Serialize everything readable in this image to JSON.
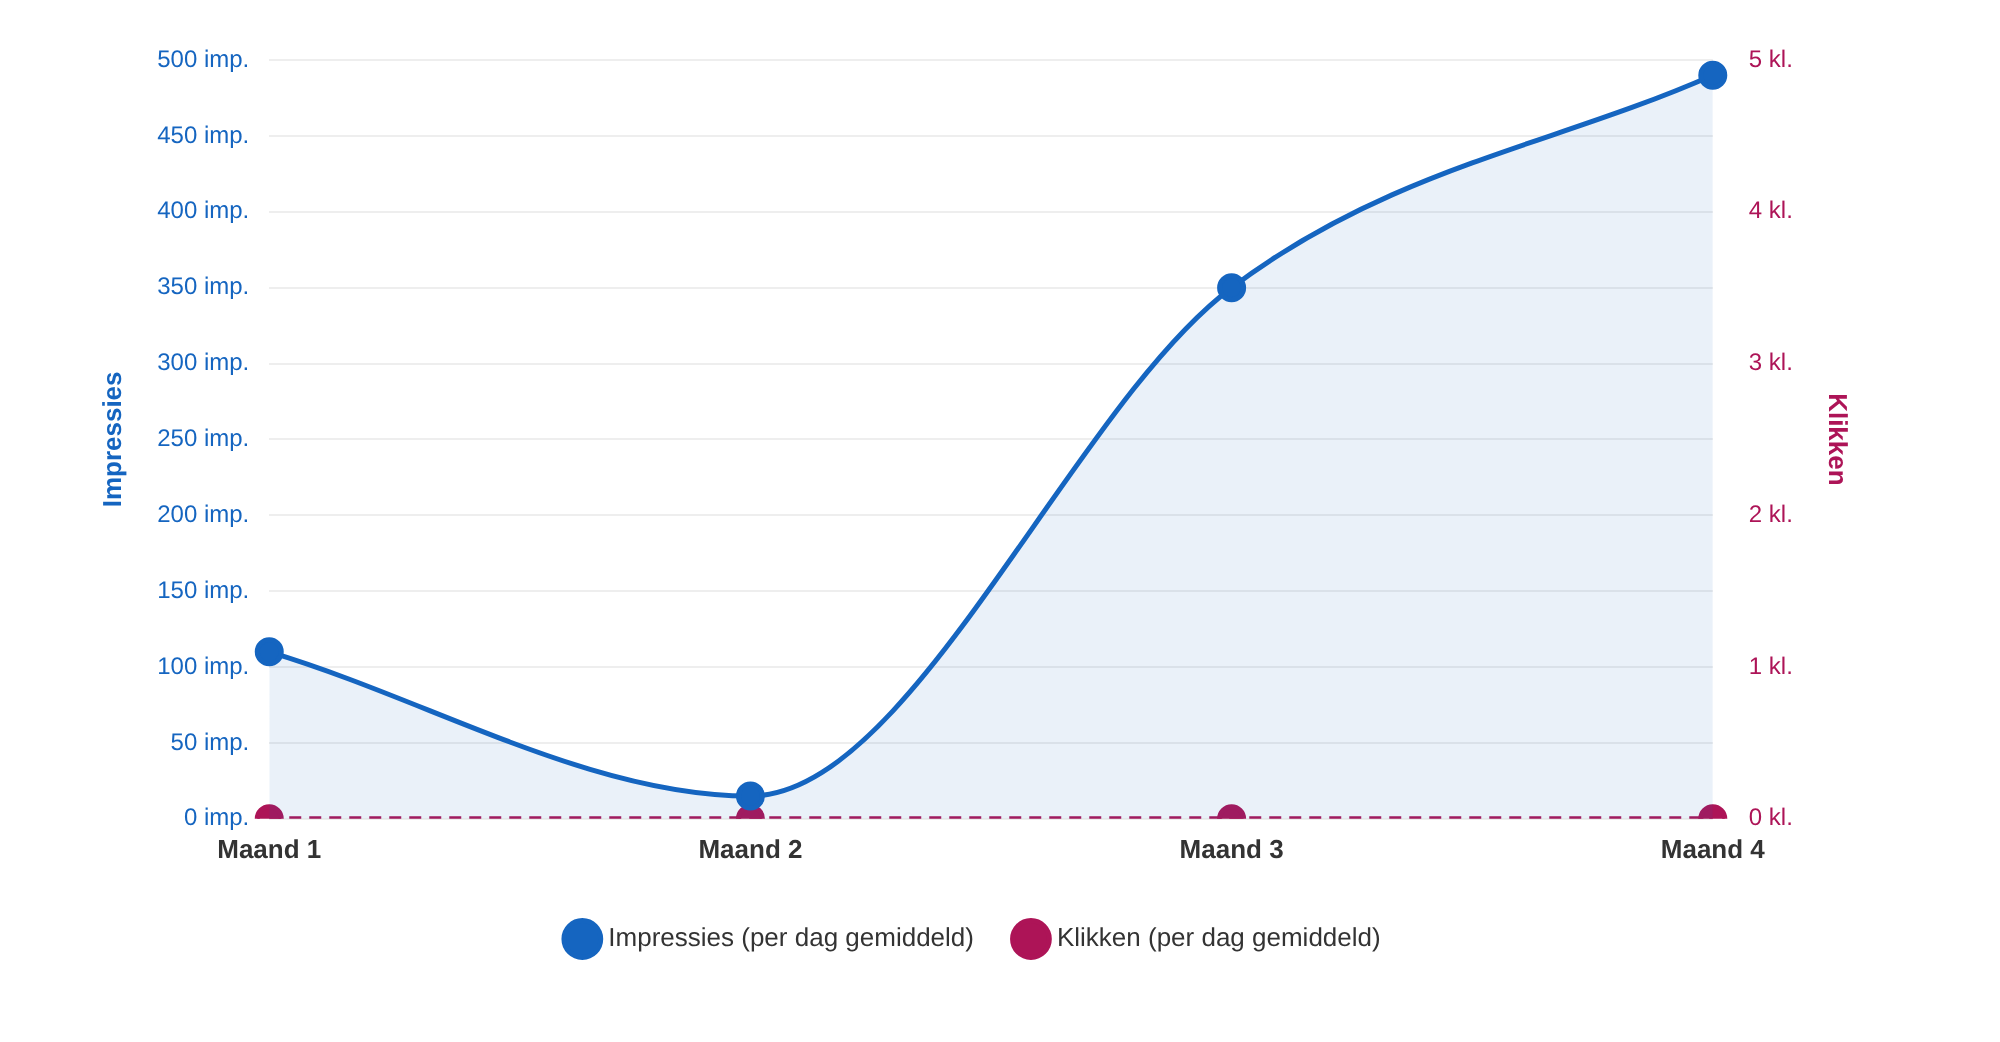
{
  "chart_data": {
    "type": "line",
    "ylabel": "Impressies",
    "y2label": "Klikken",
    "categories": [
      "Maand 1",
      "Maand 2",
      "Maand 3",
      "Maand 4"
    ],
    "series": [
      {
        "name": "Impressies (per dag gemiddeld)",
        "type": "area",
        "color": "#1565c0",
        "values": [
          110,
          15,
          350,
          490
        ],
        "line_style": "solid"
      },
      {
        "name": "Klikken (per dag gemiddeld)",
        "color": "#ad1457",
        "values": [
          0,
          0,
          0,
          0
        ],
        "axis": "y2",
        "line_style": "dashed"
      }
    ],
    "ylim": [
      0,
      500
    ],
    "yticks": [
      {
        "value": 0,
        "label": "0 imp."
      },
      {
        "value": 50,
        "label": "50 imp."
      },
      {
        "value": 100,
        "label": "100 imp."
      },
      {
        "value": 150,
        "label": "150 imp."
      },
      {
        "value": 200,
        "label": "200 imp."
      },
      {
        "value": 250,
        "label": "250 imp."
      },
      {
        "value": 300,
        "label": "300 imp."
      },
      {
        "value": 350,
        "label": "350 imp."
      },
      {
        "value": 400,
        "label": "400 imp."
      },
      {
        "value": 450,
        "label": "450 imp."
      },
      {
        "value": 500,
        "label": "500 imp."
      }
    ],
    "y2lim": [
      0,
      5
    ],
    "y2ticks": [
      {
        "value": 0,
        "label": "0 kl."
      },
      {
        "value": 1,
        "label": "1 kl."
      },
      {
        "value": 2,
        "label": "2 kl."
      },
      {
        "value": 3,
        "label": "3 kl."
      },
      {
        "value": 4,
        "label": "4 kl."
      },
      {
        "value": 5,
        "label": "5 kl."
      }
    ],
    "grid": "y",
    "legend": "bottom",
    "marker": "circle"
  }
}
